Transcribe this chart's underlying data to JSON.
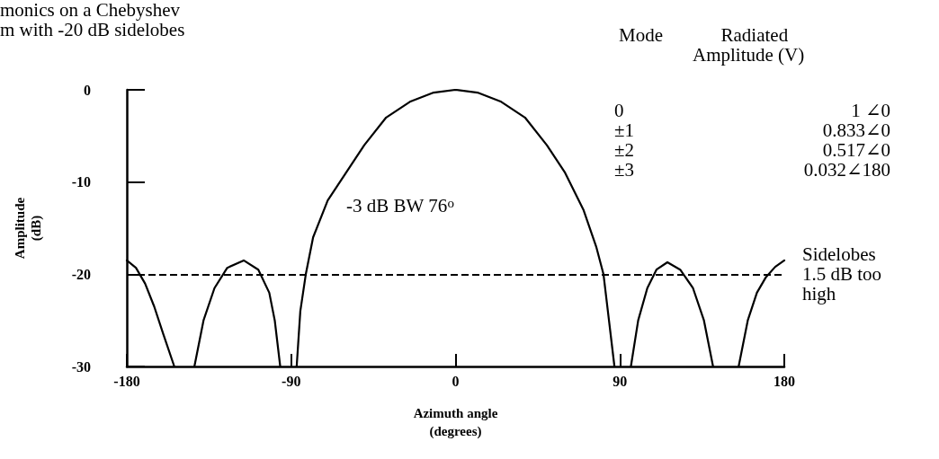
{
  "chart_data": {
    "type": "line",
    "title": "monics on a Chebyshev\nm with -20 dB sidelobes",
    "xlabel": "Azimuth angle\n(degrees)",
    "ylabel": "Amplitude\n(dB)",
    "series": [
      {
        "color": "#000000",
        "x": [
          -180,
          -175,
          -170,
          -165,
          -160,
          -154,
          -150,
          -143,
          -138,
          -132,
          -125,
          -116,
          -108,
          -102,
          -99,
          -96,
          -92,
          -87,
          -85,
          -82,
          -78,
          -70,
          -60,
          -50,
          -38,
          -25,
          -12,
          0,
          12,
          25,
          38,
          50,
          60,
          70,
          77,
          81,
          84,
          87,
          92,
          96,
          100,
          105,
          110,
          116,
          123,
          130,
          136,
          141,
          148,
          155,
          160,
          165,
          170,
          175,
          180
        ],
        "values": [
          -18.5,
          -19.3,
          -21,
          -23.5,
          -26.5,
          -30,
          null,
          -30,
          -25,
          -21.5,
          -19.3,
          -18.5,
          -19.5,
          -22,
          -25,
          -30,
          null,
          -30,
          -24,
          -20,
          -16,
          -12,
          -9,
          -6,
          -3,
          -1.3,
          -0.3,
          0,
          -0.3,
          -1.3,
          -3,
          -6,
          -9,
          -13,
          -17,
          -20,
          -25,
          -30,
          null,
          -30,
          -25,
          -21.5,
          -19.5,
          -18.7,
          -19.5,
          -21.5,
          -25,
          -30,
          null,
          -30,
          -25,
          -22,
          -20.3,
          -19.2,
          -18.5
        ]
      }
    ],
    "xlim": [
      -180,
      180
    ],
    "xticks": [
      -180,
      -90,
      0,
      90,
      180
    ],
    "ylim": [
      -30,
      0
    ],
    "yticks": [
      -30,
      -20,
      -10,
      0
    ],
    "grid": false,
    "marker": "none",
    "line_style": "solid",
    "ref_lines": [
      {
        "axis": "y",
        "value": -20,
        "label": "Sidelobes\n1.5 dB too\nhigh",
        "line_style": "dashed",
        "color": "#000000"
      }
    ],
    "annotations": [
      "-3 dB BW 76$^{o}$",
      "Mode",
      "Radiated\nAmplitude (V)",
      "0",
      "1 ∠0",
      "±1",
      "0.833∠0",
      "±2",
      "0.517∠0",
      "±3",
      "0.032∠180"
    ]
  }
}
